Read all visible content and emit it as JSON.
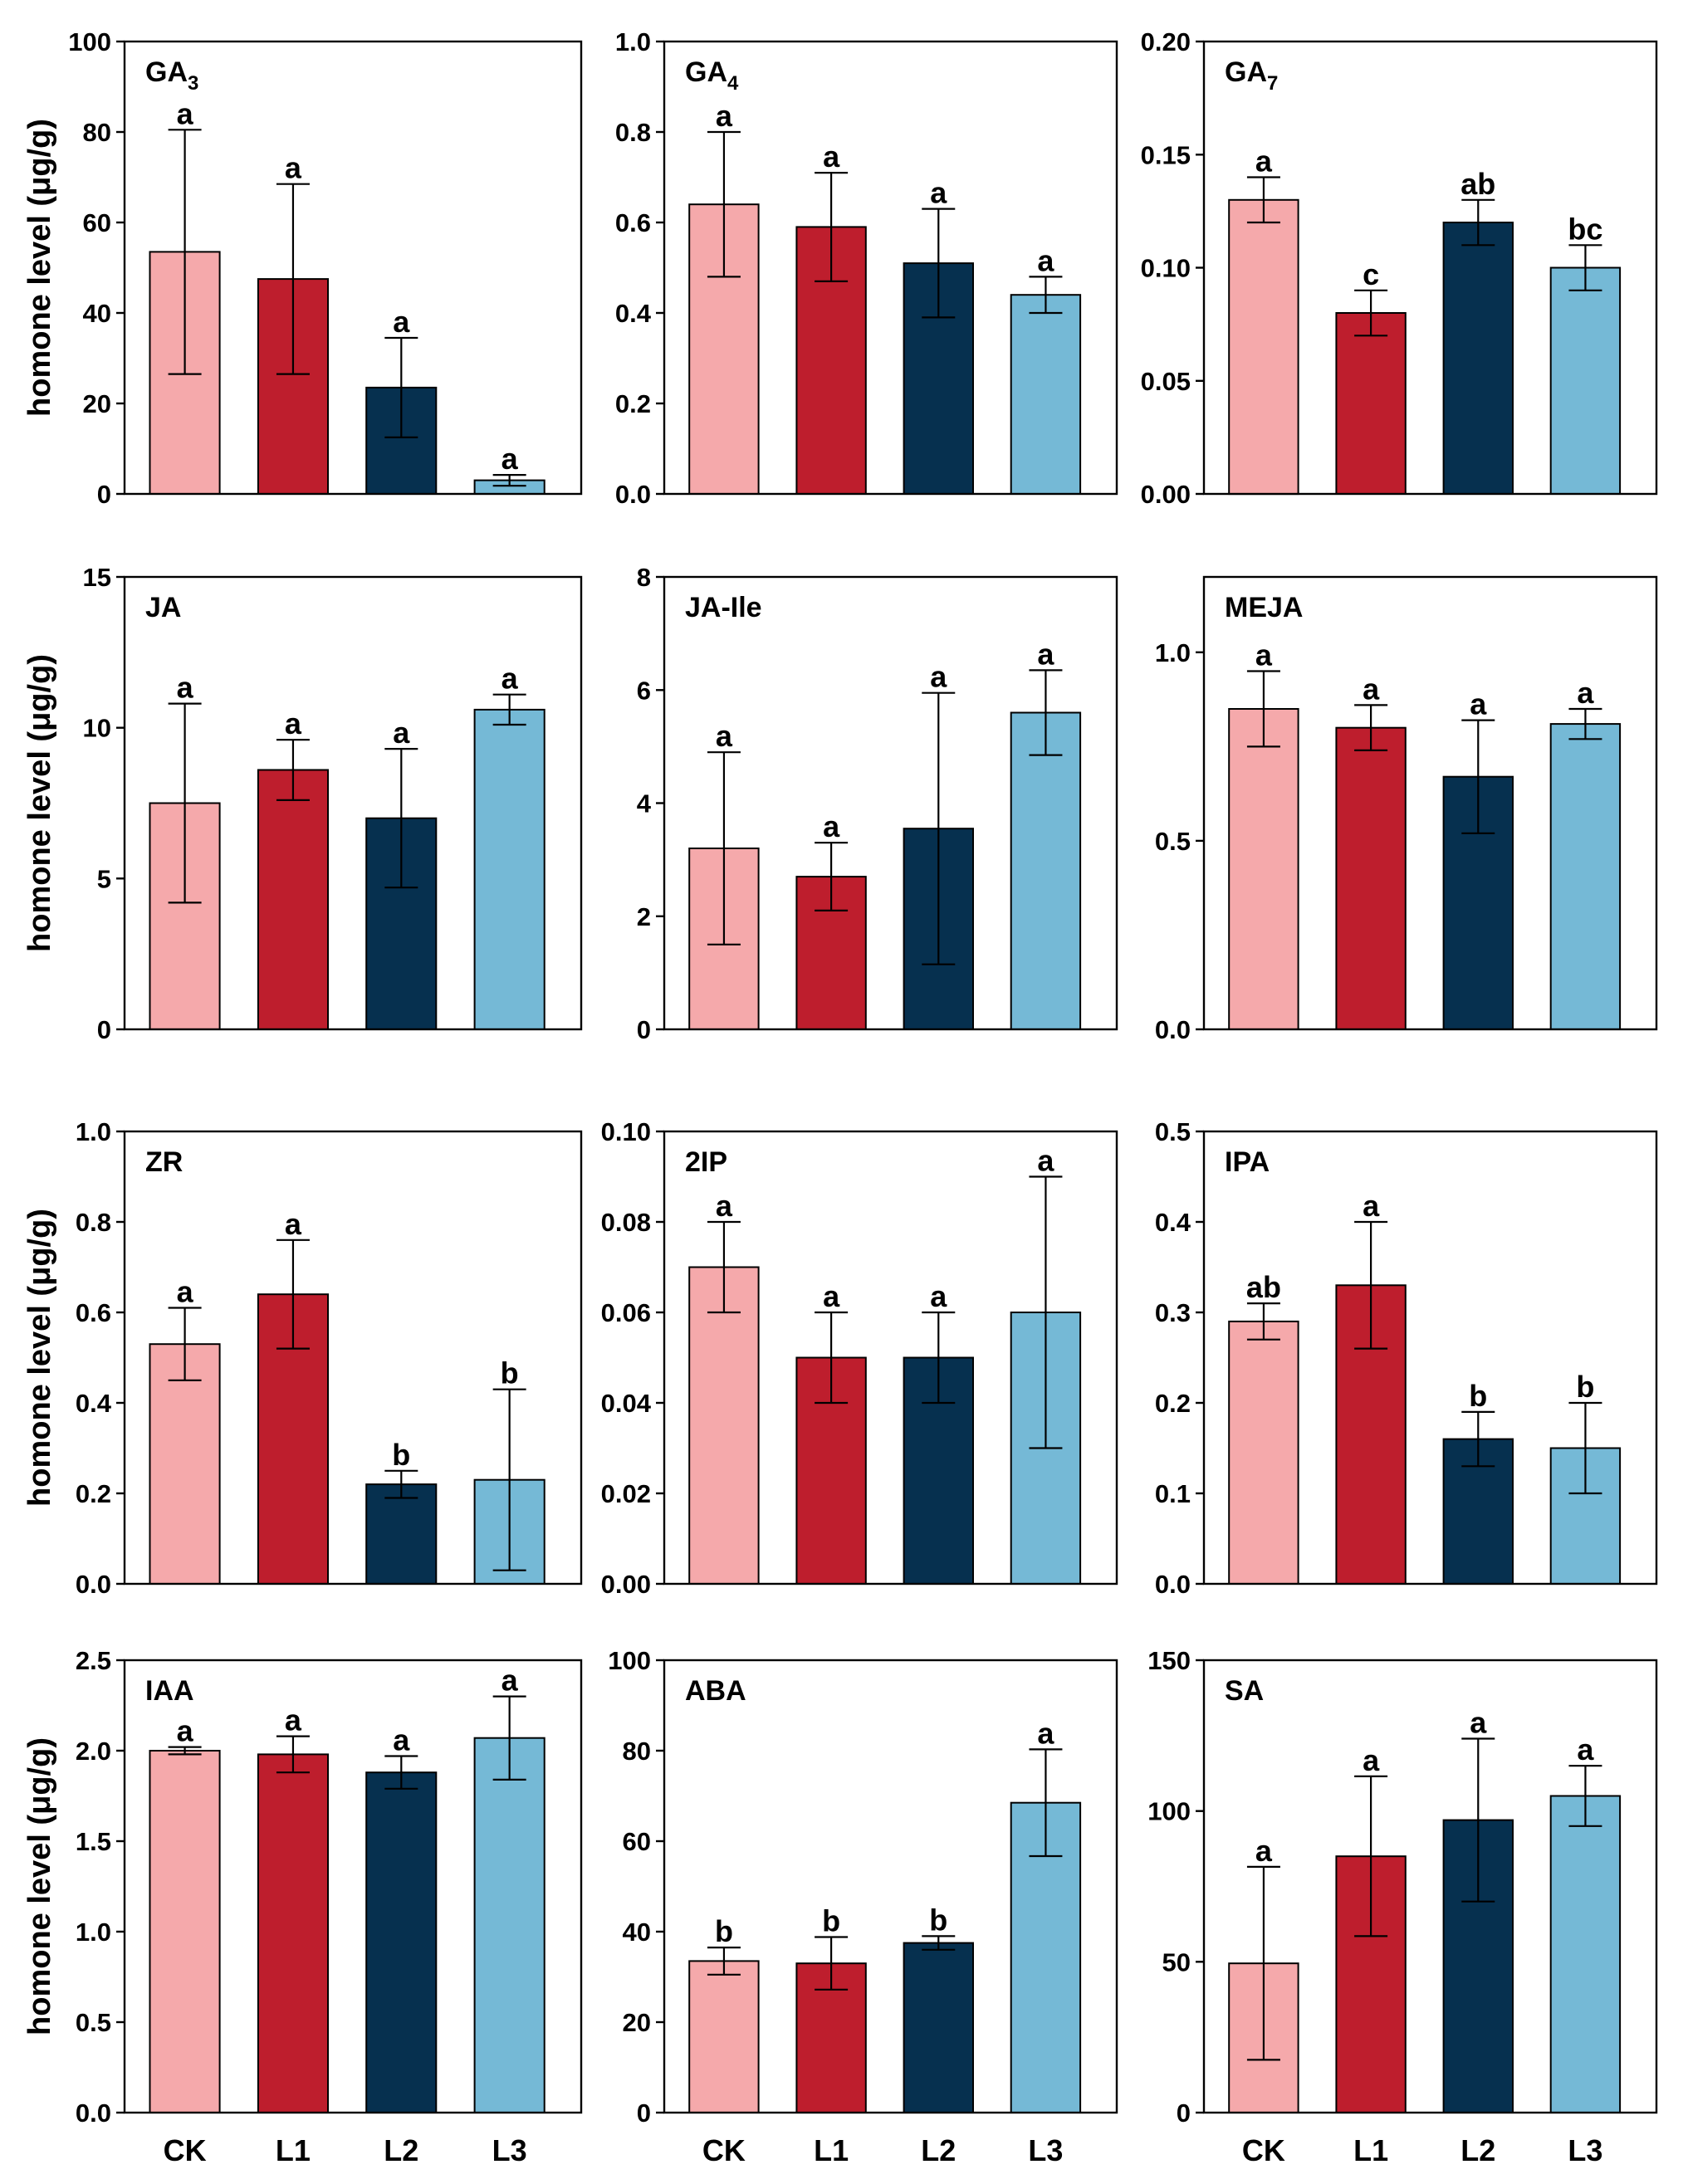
{
  "colors": {
    "CK": "#f5a9ab",
    "L1": "#be1e2d",
    "L2": "#06304f",
    "L3": "#75b9d6"
  },
  "chart_data": {
    "type": "bar",
    "ylabel": "homone level (μg/g)",
    "categories": [
      "CK",
      "L1",
      "L2",
      "L3"
    ],
    "panels": [
      {
        "id": "GA3",
        "title": "GA",
        "title_sub": "3",
        "ylim": [
          0,
          100
        ],
        "yticks": [
          0,
          20,
          40,
          60,
          80,
          100
        ],
        "tick_labels": [
          "0",
          "20",
          "40",
          "60",
          "80",
          "100"
        ],
        "values": [
          53.5,
          47.5,
          23.5,
          3.0
        ],
        "errors": [
          27,
          21,
          11,
          1.2
        ],
        "letters": [
          "a",
          "a",
          "a",
          "a"
        ]
      },
      {
        "id": "GA4",
        "title": "GA",
        "title_sub": "4",
        "ylim": [
          0,
          1.0
        ],
        "yticks": [
          0,
          0.2,
          0.4,
          0.6,
          0.8,
          1.0
        ],
        "tick_labels": [
          "0.0",
          "0.2",
          "0.4",
          "0.6",
          "0.8",
          "1.0"
        ],
        "values": [
          0.64,
          0.59,
          0.51,
          0.44
        ],
        "errors": [
          0.16,
          0.12,
          0.12,
          0.04
        ],
        "letters": [
          "a",
          "a",
          "a",
          "a"
        ]
      },
      {
        "id": "GA7",
        "title": "GA",
        "title_sub": "7",
        "ylim": [
          0,
          0.2
        ],
        "yticks": [
          0,
          0.05,
          0.1,
          0.15,
          0.2
        ],
        "tick_labels": [
          "0.00",
          "0.05",
          "0.10",
          "0.15",
          "0.20"
        ],
        "values": [
          0.13,
          0.08,
          0.12,
          0.1
        ],
        "errors": [
          0.01,
          0.01,
          0.01,
          0.01
        ],
        "letters": [
          "a",
          "c",
          "ab",
          "bc"
        ]
      },
      {
        "id": "JA",
        "title": "JA",
        "title_sub": "",
        "ylim": [
          0,
          15
        ],
        "yticks": [
          0,
          5,
          10,
          15
        ],
        "tick_labels": [
          "0",
          "5",
          "10",
          "15"
        ],
        "values": [
          7.5,
          8.6,
          7.0,
          10.6
        ],
        "errors": [
          3.3,
          1.0,
          2.3,
          0.5
        ],
        "letters": [
          "a",
          "a",
          "a",
          "a"
        ]
      },
      {
        "id": "JA-Ile",
        "title": "JA-Ile",
        "title_sub": "",
        "ylim": [
          0,
          8
        ],
        "yticks": [
          0,
          2,
          4,
          6,
          8
        ],
        "tick_labels": [
          "0",
          "2",
          "4",
          "6",
          "8"
        ],
        "values": [
          3.2,
          2.7,
          3.55,
          5.6
        ],
        "errors": [
          1.7,
          0.6,
          2.4,
          0.75
        ],
        "letters": [
          "a",
          "a",
          "a",
          "a"
        ]
      },
      {
        "id": "MEJA",
        "title": "MEJA",
        "title_sub": "",
        "ylim": [
          0,
          1.2
        ],
        "yticks": [
          0,
          0.5,
          1.0
        ],
        "tick_labels": [
          "0.0",
          "0.5",
          "1.0"
        ],
        "values": [
          0.85,
          0.8,
          0.67,
          0.81
        ],
        "errors": [
          0.1,
          0.06,
          0.15,
          0.04
        ],
        "letters": [
          "a",
          "a",
          "a",
          "a"
        ]
      },
      {
        "id": "ZR",
        "title": "ZR",
        "title_sub": "",
        "ylim": [
          0,
          1.0
        ],
        "yticks": [
          0,
          0.2,
          0.4,
          0.6,
          0.8,
          1.0
        ],
        "tick_labels": [
          "0.0",
          "0.2",
          "0.4",
          "0.6",
          "0.8",
          "1.0"
        ],
        "values": [
          0.53,
          0.64,
          0.22,
          0.23
        ],
        "errors": [
          0.08,
          0.12,
          0.03,
          0.2
        ],
        "letters": [
          "a",
          "a",
          "b",
          "b"
        ]
      },
      {
        "id": "2IP",
        "title": "2IP",
        "title_sub": "",
        "ylim": [
          0,
          0.1
        ],
        "yticks": [
          0,
          0.02,
          0.04,
          0.06,
          0.08,
          0.1
        ],
        "tick_labels": [
          "0.00",
          "0.02",
          "0.04",
          "0.06",
          "0.08",
          "0.10"
        ],
        "values": [
          0.07,
          0.05,
          0.05,
          0.06
        ],
        "errors": [
          0.01,
          0.01,
          0.01,
          0.03
        ],
        "letters": [
          "a",
          "a",
          "a",
          "a"
        ]
      },
      {
        "id": "IPA",
        "title": "IPA",
        "title_sub": "",
        "ylim": [
          0,
          0.5
        ],
        "yticks": [
          0,
          0.1,
          0.2,
          0.3,
          0.4,
          0.5
        ],
        "tick_labels": [
          "0.0",
          "0.1",
          "0.2",
          "0.3",
          "0.4",
          "0.5"
        ],
        "values": [
          0.29,
          0.33,
          0.16,
          0.15
        ],
        "errors": [
          0.02,
          0.07,
          0.03,
          0.05
        ],
        "letters": [
          "ab",
          "a",
          "b",
          "b"
        ]
      },
      {
        "id": "IAA",
        "title": "IAA",
        "title_sub": "",
        "ylim": [
          0,
          2.5
        ],
        "yticks": [
          0,
          0.5,
          1.0,
          1.5,
          2.0,
          2.5
        ],
        "tick_labels": [
          "0.0",
          "0.5",
          "1.0",
          "1.5",
          "2.0",
          "2.5"
        ],
        "values": [
          2.0,
          1.98,
          1.88,
          2.07
        ],
        "errors": [
          0.02,
          0.1,
          0.09,
          0.23
        ],
        "letters": [
          "a",
          "a",
          "a",
          "a"
        ]
      },
      {
        "id": "ABA",
        "title": "ABA",
        "title_sub": "",
        "ylim": [
          0,
          100
        ],
        "yticks": [
          0,
          20,
          40,
          60,
          80,
          100
        ],
        "tick_labels": [
          "0",
          "20",
          "40",
          "60",
          "80",
          "100"
        ],
        "values": [
          33.5,
          33.0,
          37.5,
          68.5
        ],
        "errors": [
          3.0,
          5.8,
          1.5,
          11.8
        ],
        "letters": [
          "b",
          "b",
          "b",
          "a"
        ]
      },
      {
        "id": "SA",
        "title": "SA",
        "title_sub": "",
        "ylim": [
          0,
          150
        ],
        "yticks": [
          0,
          50,
          100,
          150
        ],
        "tick_labels": [
          "0",
          "50",
          "100",
          "150"
        ],
        "values": [
          49.5,
          85.0,
          97.0,
          105.0
        ],
        "errors": [
          32.0,
          26.5,
          27.0,
          10.0
        ],
        "letters": [
          "a",
          "a",
          "a",
          "a"
        ]
      }
    ]
  }
}
